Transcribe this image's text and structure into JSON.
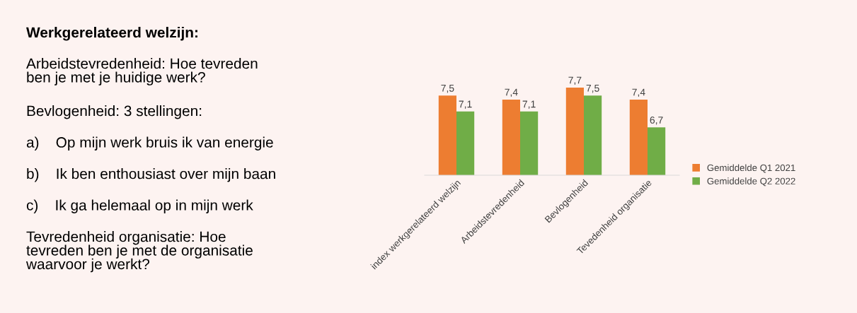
{
  "chart_data": {
    "type": "bar",
    "title": "Werkgerelateerd welzijn:",
    "annotations": [
      "Arbeidstevredenheid: Hoe tevreden\nben je met je huidige werk?",
      "Bevlogenheid: 3 stellingen:",
      "a)    Op mijn werk bruis ik van energie",
      "b)    Ik ben enthousiast over mijn baan",
      "c)    Ik ga helemaal op in mijn werk",
      "Tevredenheid organisatie: Hoe\ntevreden ben je met de organisatie\nwaarvoor je werkt?"
    ],
    "categories": [
      "index werkgerelateerd welzijn",
      "Arbeidstevredenheid",
      "Bevlogenheid",
      "Tevedenheid organisatie"
    ],
    "series": [
      {
        "name": "Gemiddelde Q1 2021",
        "color": "#ed7d31",
        "values": [
          7.5,
          7.4,
          7.7,
          7.4
        ],
        "value_labels": [
          "7,5",
          "7,4",
          "7,7",
          "7,4"
        ]
      },
      {
        "name": "Gemiddelde Q2 2022",
        "color": "#70ad47",
        "values": [
          7.1,
          7.1,
          7.5,
          6.7
        ],
        "value_labels": [
          "7,1",
          "7,1",
          "7,5",
          "6,7"
        ]
      }
    ],
    "ylim": [
      5.5,
      7.7
    ],
    "legend": "right"
  }
}
